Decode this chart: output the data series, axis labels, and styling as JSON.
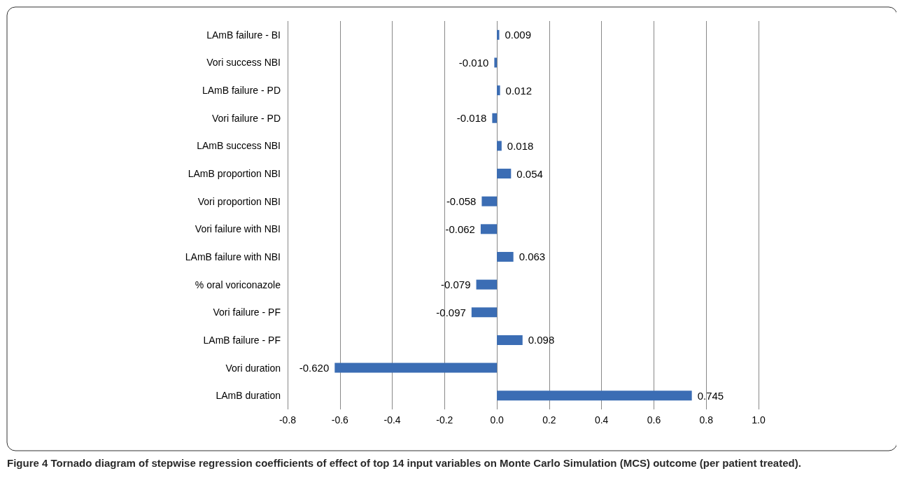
{
  "chart_data": {
    "type": "bar",
    "orientation": "horizontal",
    "categories": [
      "LAmB failure - BI",
      "Vori success NBI",
      "LAmB failure - PD",
      "Vori failure - PD",
      "LAmB success NBI",
      "LAmB proportion NBI",
      "Vori proportion NBI",
      "Vori failure with NBI",
      "LAmB failure with NBI",
      "% oral voriconazole",
      "Vori failure - PF",
      "LAmB failure - PF",
      "Vori duration",
      "LAmB duration"
    ],
    "values": [
      0.009,
      -0.01,
      0.012,
      -0.018,
      0.018,
      0.054,
      -0.058,
      -0.062,
      0.063,
      -0.079,
      -0.097,
      0.098,
      -0.62,
      0.745
    ],
    "color": "#3b6db4",
    "xlim": [
      -0.8,
      1.0
    ],
    "xticks": [
      -0.8,
      -0.6,
      -0.4,
      -0.2,
      {
        "value": 0,
        "label": "0.0"
      },
      0.2,
      0.4,
      0.6,
      0.8,
      {
        "value": 1.0,
        "label": "1.0"
      }
    ],
    "value_labels": [
      "0.009",
      "-0.010",
      "0.012",
      "-0.018",
      "0.018",
      "0.054",
      "-0.058",
      "-0.062",
      "0.063",
      "-0.079",
      "-0.097",
      "0.098",
      "-0.620",
      "0.745"
    ],
    "grid": "x",
    "annotations": [
      "Figure 4 Tornado diagram of stepwise regression coefficients of effect of top 14 input variables on Monte Carlo Simulation (MCS) outcome (per patient treated)."
    ]
  }
}
